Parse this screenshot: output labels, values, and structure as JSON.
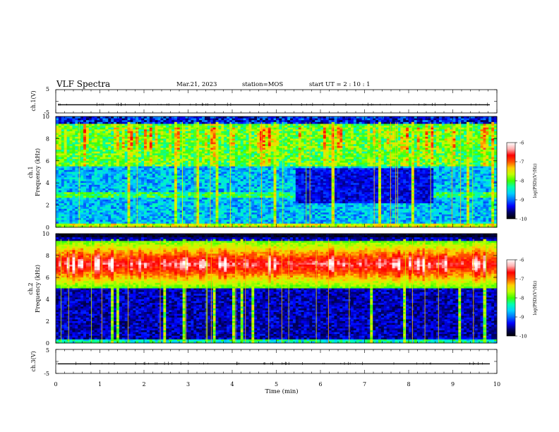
{
  "header": {
    "title": "VLF Spectra",
    "date": "Mar.21, 2023",
    "station": "station=MOS",
    "start": "start  UT =   2 : 10 : 1"
  },
  "colors": {
    "scale": [
      "#000000",
      "#000060",
      "#0000ff",
      "#0070ff",
      "#00d0ff",
      "#00ffb0",
      "#40ff00",
      "#c0ff00",
      "#ffd000",
      "#ff5000",
      "#ff0000",
      "#ffb0b0",
      "#ffffff"
    ]
  },
  "chart_data": [
    {
      "type": "line",
      "id": "ch1-waveform",
      "ylabel": "ch.1(V)",
      "ylim": [
        -5,
        5
      ],
      "yticks": [
        "5",
        "-5"
      ],
      "xlim": [
        0,
        10
      ],
      "baseline": -1.5
    },
    {
      "type": "heatmap",
      "id": "ch1-spectrogram",
      "ylabel": "ch.1\nFrequency (kHz)",
      "ylim": [
        0,
        10
      ],
      "yticks": [
        "0",
        "2",
        "4",
        "6",
        "8",
        "10"
      ],
      "xlim": [
        0,
        10
      ],
      "colorbar": {
        "label": "log(PSD)(V²/Hz)",
        "range": [
          -10,
          -6
        ],
        "ticks": [
          "-6",
          "-7",
          "-8",
          "-9",
          "-10"
        ]
      },
      "features": {
        "quiet_interval_min": [
          5.45,
          8.55
        ],
        "band_low_khz": [
          0.3,
          5.3
        ],
        "band_high_khz": [
          5.5,
          9.5
        ]
      }
    },
    {
      "type": "heatmap",
      "id": "ch2-spectrogram",
      "ylabel": "ch.2\nFrequency (kHz)",
      "ylim": [
        0,
        10
      ],
      "yticks": [
        "0",
        "2",
        "4",
        "6",
        "8",
        "10"
      ],
      "xlim": [
        0,
        10
      ],
      "colorbar": {
        "label": "log(PSD)(V²/Hz)",
        "range": [
          -10,
          -6
        ],
        "ticks": [
          "-6",
          "-7",
          "-8",
          "-9",
          "-10"
        ]
      },
      "features": {
        "band_center_khz": 7.2,
        "band_halfwidth_khz": 2.2
      }
    },
    {
      "type": "line",
      "id": "ch3-waveform",
      "ylabel": "ch.3(V)",
      "ylim": [
        -5,
        5
      ],
      "yticks": [
        "5",
        "-5"
      ],
      "xlim": [
        0,
        10
      ],
      "baseline": -1.0,
      "xlabel": "Time  (min)",
      "xticks": [
        "0",
        "1",
        "2",
        "3",
        "4",
        "5",
        "6",
        "7",
        "8",
        "9",
        "10"
      ]
    }
  ]
}
